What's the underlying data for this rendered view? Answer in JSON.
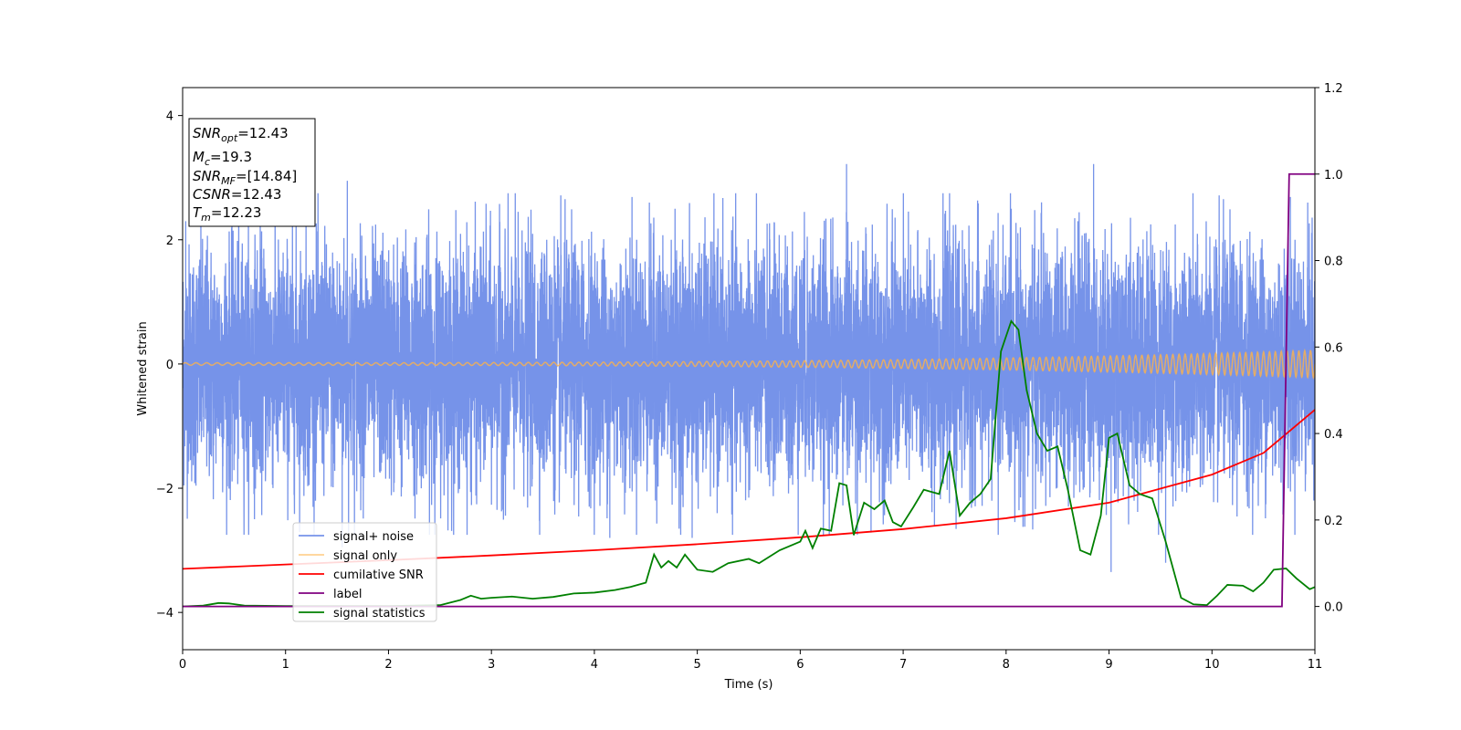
{
  "chart_data": {
    "type": "line",
    "title": "",
    "xlabel": "Time (s)",
    "ylabel": "Whitened strain",
    "xlim": [
      0,
      11
    ],
    "ylim": [
      -4.6,
      4.45
    ],
    "y2lim": [
      -0.1,
      1.2
    ],
    "xticks": [
      "0",
      "1",
      "2",
      "3",
      "4",
      "5",
      "6",
      "7",
      "8",
      "9",
      "10",
      "11"
    ],
    "yticks": [
      "-4",
      "-2",
      "0",
      "2",
      "4"
    ],
    "y2ticks": [
      "0.0",
      "0.2",
      "0.4",
      "0.6",
      "0.8",
      "1.0",
      "1.2"
    ],
    "grid": false,
    "legend_position": "lower-left",
    "info_box": {
      "snr_opt": {
        "base": "SNR",
        "sub": "opt",
        "value": "=12.43"
      },
      "mc": {
        "base": "M",
        "sub": "c",
        "value": "=19.3"
      },
      "snr_mf": {
        "base": "SNR",
        "sub": "MF",
        "value": "=[14.84]"
      },
      "csnr": {
        "base": "CSNR",
        "value": "=12.43"
      },
      "tm": {
        "base": "T",
        "sub": "m",
        "value": "=12.23"
      }
    },
    "series": [
      {
        "name": "signal+ noise",
        "color": "#4169e1",
        "axis": "left",
        "noise_sigma": 0.95,
        "peaks": [
          [
            0.03,
            2.3
          ],
          [
            1.6,
            2.95
          ],
          [
            6.45,
            3.22
          ],
          [
            8.85,
            3.22
          ],
          [
            8.05,
            2.5
          ],
          [
            4.95,
            -2.8
          ],
          [
            4.15,
            -2.8
          ],
          [
            9.55,
            -3.2
          ],
          [
            9.02,
            -3.35
          ],
          [
            1.55,
            -2.95
          ]
        ]
      },
      {
        "name": "signal only",
        "color": "#ffb347",
        "axis": "left",
        "amplitude_start": 0.02,
        "amplitude_end": 0.22,
        "cycles": 150
      },
      {
        "name": "cumilative SNR",
        "color": "#ff0000",
        "axis": "right",
        "x": [
          0,
          1,
          2,
          3,
          4,
          5,
          6,
          7,
          8,
          9,
          10,
          10.5,
          11
        ],
        "values": [
          0.087,
          0.097,
          0.107,
          0.118,
          0.13,
          0.144,
          0.16,
          0.179,
          0.204,
          0.24,
          0.305,
          0.355,
          0.455
        ]
      },
      {
        "name": "label",
        "color": "#800080",
        "axis": "right",
        "x": [
          0,
          10.68,
          10.75,
          11
        ],
        "values": [
          0,
          0,
          1,
          1
        ]
      },
      {
        "name": "signal statistics",
        "color": "#008000",
        "axis": "right",
        "x": [
          0,
          0.2,
          0.35,
          0.45,
          0.6,
          1.0,
          1.5,
          2.0,
          2.5,
          2.7,
          2.8,
          2.9,
          3.0,
          3.2,
          3.4,
          3.6,
          3.8,
          4.0,
          4.2,
          4.35,
          4.5,
          4.58,
          4.65,
          4.72,
          4.8,
          4.88,
          5.0,
          5.15,
          5.3,
          5.5,
          5.6,
          5.7,
          5.8,
          6.0,
          6.05,
          6.12,
          6.2,
          6.3,
          6.38,
          6.45,
          6.52,
          6.62,
          6.72,
          6.82,
          6.9,
          6.98,
          7.1,
          7.2,
          7.35,
          7.45,
          7.55,
          7.65,
          7.75,
          7.85,
          7.95,
          8.05,
          8.12,
          8.2,
          8.3,
          8.4,
          8.5,
          8.6,
          8.72,
          8.82,
          8.92,
          9.0,
          9.08,
          9.2,
          9.3,
          9.42,
          9.55,
          9.7,
          9.82,
          9.95,
          10.05,
          10.15,
          10.3,
          10.4,
          10.5,
          10.6,
          10.72,
          10.82,
          10.95,
          11.0
        ],
        "values": [
          0.0,
          0.002,
          0.008,
          0.007,
          0.002,
          0.001,
          0.001,
          0.001,
          0.003,
          0.015,
          0.025,
          0.018,
          0.02,
          0.023,
          0.018,
          0.022,
          0.03,
          0.032,
          0.038,
          0.045,
          0.055,
          0.12,
          0.09,
          0.105,
          0.09,
          0.12,
          0.085,
          0.08,
          0.1,
          0.11,
          0.1,
          0.115,
          0.13,
          0.15,
          0.175,
          0.135,
          0.18,
          0.175,
          0.285,
          0.28,
          0.165,
          0.24,
          0.225,
          0.245,
          0.195,
          0.185,
          0.23,
          0.27,
          0.26,
          0.36,
          0.21,
          0.24,
          0.26,
          0.295,
          0.59,
          0.66,
          0.64,
          0.5,
          0.4,
          0.36,
          0.37,
          0.27,
          0.13,
          0.12,
          0.21,
          0.39,
          0.4,
          0.28,
          0.26,
          0.25,
          0.15,
          0.02,
          0.005,
          0.003,
          0.025,
          0.05,
          0.048,
          0.035,
          0.055,
          0.085,
          0.088,
          0.065,
          0.04,
          0.045
        ]
      }
    ]
  }
}
